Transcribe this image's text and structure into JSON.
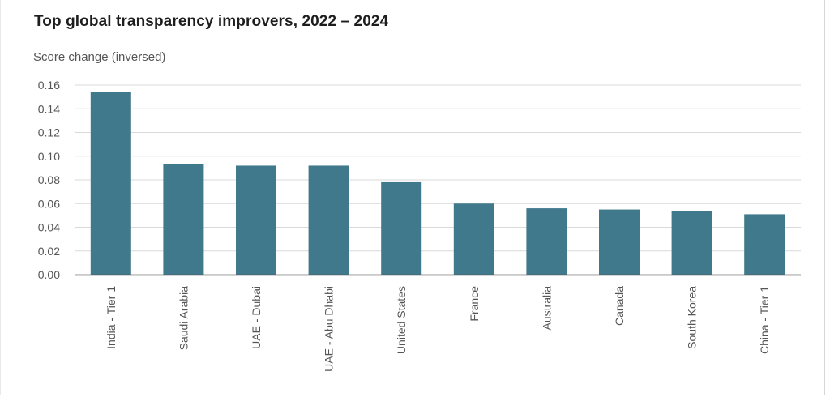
{
  "chart_data": {
    "type": "bar",
    "title": "Top global transparency improvers, 2022 – 2024",
    "ylabel": "Score change (inversed)",
    "xlabel": "",
    "categories": [
      "India - Tier 1",
      "Saudi Arabia",
      "UAE - Dubai",
      "UAE - Abu Dhabi",
      "United States",
      "France",
      "Australia",
      "Canada",
      "South Korea",
      "China - Tier 1"
    ],
    "values": [
      0.154,
      0.093,
      0.092,
      0.092,
      0.078,
      0.06,
      0.056,
      0.055,
      0.054,
      0.051
    ],
    "ylim": [
      0,
      0.16
    ],
    "yticks": [
      "0.00",
      "0.02",
      "0.04",
      "0.06",
      "0.08",
      "0.10",
      "0.12",
      "0.14",
      "0.16"
    ],
    "grid": true,
    "colors": {
      "bar": "#40788c",
      "grid": "#d9d9d9",
      "axis": "#555555"
    }
  }
}
